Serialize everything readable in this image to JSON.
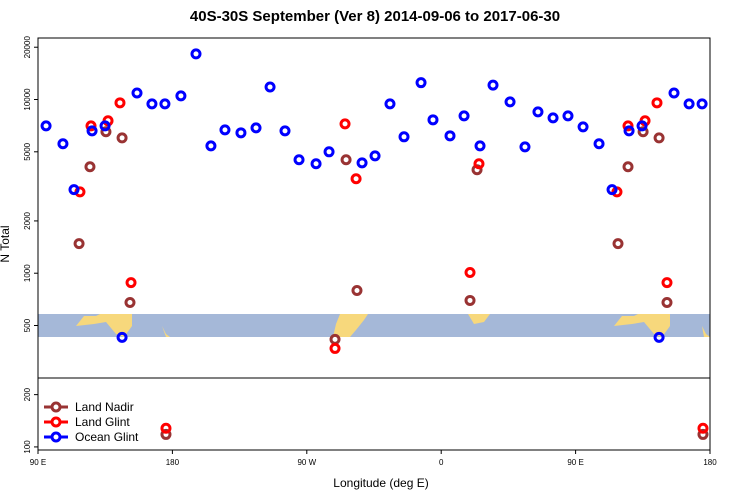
{
  "chart_data": {
    "type": "scatter",
    "title": "40S-30S September (Ver 8)   2014-09-06 to 2017-06-30",
    "x_label": "Longitude (deg E)",
    "y_label": "N Total",
    "log_y": true,
    "legend": "bottom-left",
    "xlim": [
      90,
      540
    ],
    "ylim": [
      96,
      22600
    ],
    "xticks": [
      {
        "value": 90,
        "label": "90 E"
      },
      180,
      {
        "value": 270,
        "label": "90 W"
      },
      {
        "value": 360,
        "label": "0"
      },
      {
        "value": 450,
        "label": "90 E"
      },
      {
        "value": 540,
        "label": "180"
      }
    ],
    "yticks": [
      100,
      200,
      500,
      1000,
      2000,
      5000,
      10000,
      20000
    ],
    "series": [
      {
        "name": "Land Nadir",
        "color": "#993333",
        "x": [
          117.5,
          124.8,
          135.5,
          146.3,
          151.6,
          175.7,
          288.9,
          296.3,
          303.6,
          379.3,
          384,
          478.4,
          485.1,
          495.2,
          505.9,
          511.2,
          535.3
        ],
        "values": [
          1480,
          4100,
          6520,
          6010,
          678,
          118,
          416,
          4500,
          795,
          697,
          3940,
          1480,
          4100,
          6520,
          6010,
          678,
          118
        ]
      },
      {
        "name": "Land Glint",
        "color": "#ff0000",
        "x": [
          118.1,
          125.5,
          136.9,
          144.9,
          152.3,
          175.7,
          295.6,
          288.9,
          303,
          379.3,
          385.3,
          477.7,
          485.1,
          496.5,
          504.5,
          511.2,
          535.3
        ],
        "values": [
          2940,
          7050,
          7540,
          9570,
          883,
          128,
          7240,
          369,
          3500,
          1010,
          4270,
          2940,
          7050,
          7540,
          9570,
          883,
          128
        ]
      },
      {
        "name": "Ocean Glint",
        "color": "#0000ff",
        "x": [
          95.4,
          106.7,
          114.1,
          126.2,
          134.9,
          146.3,
          156.3,
          166.3,
          175,
          185.7,
          195.8,
          205.8,
          215.2,
          225.9,
          236,
          245.4,
          255.4,
          264.8,
          276.2,
          284.9,
          307,
          315.7,
          325.7,
          335.1,
          346.5,
          354.5,
          365.9,
          375.3,
          386,
          394.7,
          406.1,
          416.1,
          424.8,
          434.9,
          444.9,
          455,
          465.7,
          474.4,
          485.8,
          494.5,
          505.9,
          515.9,
          526,
          534.7
        ],
        "values": [
          7050,
          5560,
          3030,
          6600,
          7050,
          427,
          10900,
          9440,
          9440,
          10500,
          18300,
          5410,
          6690,
          6430,
          6870,
          11800,
          6600,
          4500,
          4270,
          5000,
          4320,
          4740,
          9440,
          6100,
          12500,
          7640,
          6180,
          8050,
          5410,
          12100,
          9690,
          5340,
          8490,
          7840,
          8050,
          6960,
          5560,
          3030,
          6600,
          7050,
          427,
          10900,
          9440,
          9440
        ]
      }
    ]
  }
}
